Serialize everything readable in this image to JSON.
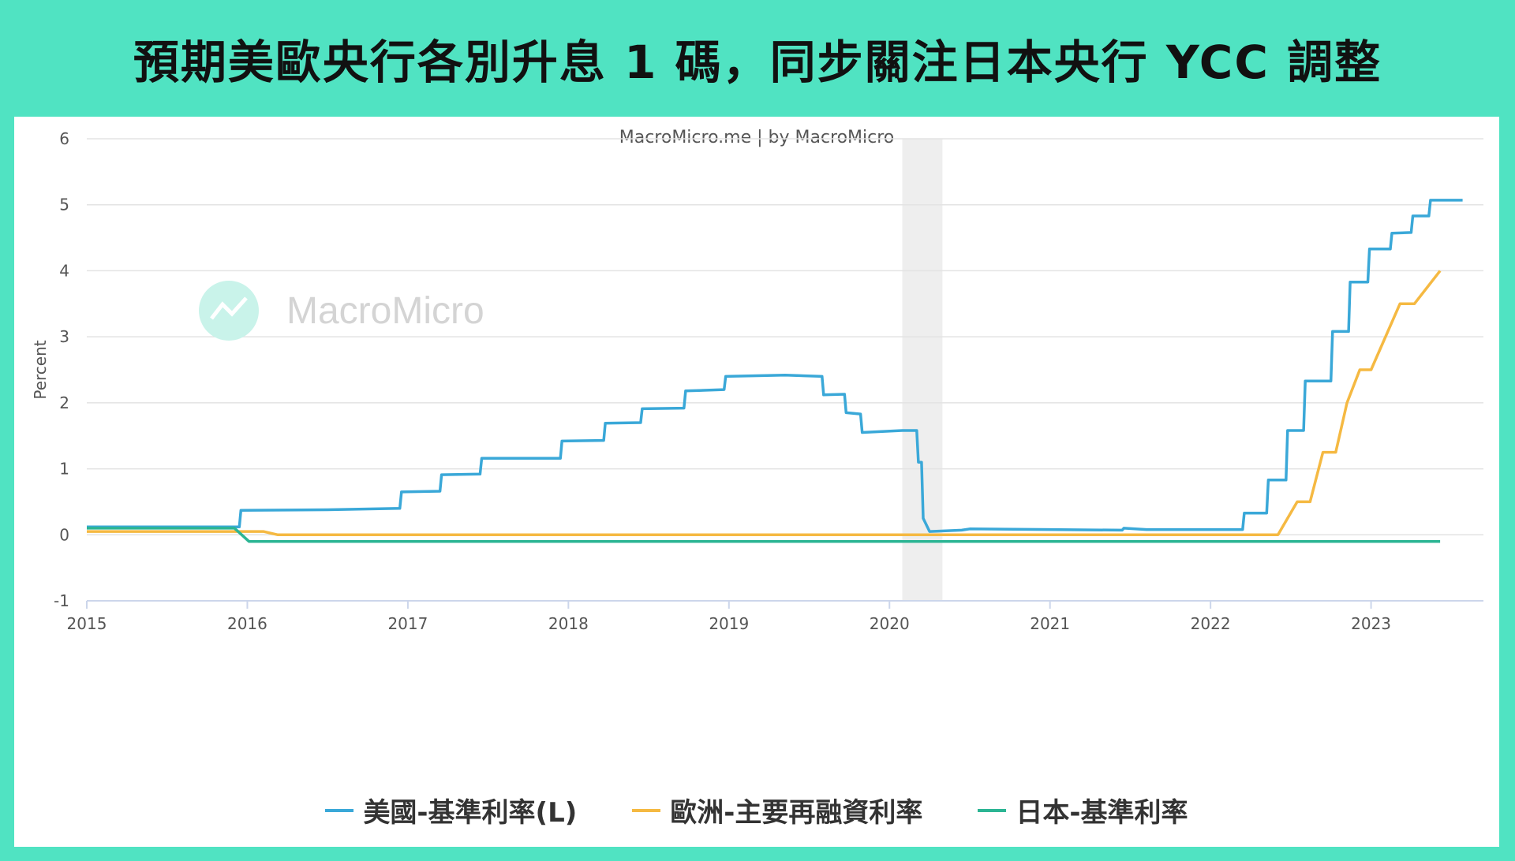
{
  "headline": "預期美歐央行各別升息 1 碼，同步關注日本央行 YCC 調整",
  "source_credit": "MacroMicro.me | by MacroMicro",
  "watermark": "MacroMicro",
  "chart_data": {
    "type": "line",
    "ylabel": "Percent",
    "ylim": [
      -1,
      6
    ],
    "yticks": [
      -1,
      0,
      1,
      2,
      3,
      4,
      5,
      6
    ],
    "xlim": [
      2015,
      2023.7
    ],
    "xticks": [
      2015,
      2016,
      2017,
      2018,
      2019,
      2020,
      2021,
      2022,
      2023
    ],
    "grid": true,
    "legend_position": "bottom",
    "shaded_region": [
      2020.08,
      2020.33
    ],
    "series": [
      {
        "name": "美國-基準利率(L)",
        "color": "#3aa8d8",
        "points": [
          [
            2015.0,
            0.12
          ],
          [
            2015.95,
            0.12
          ],
          [
            2015.96,
            0.37
          ],
          [
            2016.5,
            0.38
          ],
          [
            2016.95,
            0.4
          ],
          [
            2016.96,
            0.65
          ],
          [
            2017.2,
            0.66
          ],
          [
            2017.21,
            0.91
          ],
          [
            2017.45,
            0.92
          ],
          [
            2017.46,
            1.16
          ],
          [
            2017.95,
            1.16
          ],
          [
            2017.96,
            1.42
          ],
          [
            2018.22,
            1.43
          ],
          [
            2018.23,
            1.69
          ],
          [
            2018.45,
            1.7
          ],
          [
            2018.46,
            1.91
          ],
          [
            2018.72,
            1.92
          ],
          [
            2018.73,
            2.18
          ],
          [
            2018.97,
            2.2
          ],
          [
            2018.98,
            2.4
          ],
          [
            2019.35,
            2.42
          ],
          [
            2019.58,
            2.4
          ],
          [
            2019.59,
            2.12
          ],
          [
            2019.72,
            2.13
          ],
          [
            2019.73,
            1.85
          ],
          [
            2019.82,
            1.83
          ],
          [
            2019.83,
            1.55
          ],
          [
            2020.08,
            1.58
          ],
          [
            2020.17,
            1.58
          ],
          [
            2020.18,
            1.1
          ],
          [
            2020.2,
            1.1
          ],
          [
            2020.21,
            0.25
          ],
          [
            2020.25,
            0.05
          ],
          [
            2020.45,
            0.07
          ],
          [
            2020.5,
            0.09
          ],
          [
            2021.0,
            0.08
          ],
          [
            2021.45,
            0.07
          ],
          [
            2021.46,
            0.1
          ],
          [
            2021.6,
            0.08
          ],
          [
            2022.2,
            0.08
          ],
          [
            2022.21,
            0.33
          ],
          [
            2022.35,
            0.33
          ],
          [
            2022.36,
            0.83
          ],
          [
            2022.47,
            0.83
          ],
          [
            2022.48,
            1.58
          ],
          [
            2022.58,
            1.58
          ],
          [
            2022.59,
            2.33
          ],
          [
            2022.75,
            2.33
          ],
          [
            2022.76,
            3.08
          ],
          [
            2022.86,
            3.08
          ],
          [
            2022.87,
            3.83
          ],
          [
            2022.98,
            3.83
          ],
          [
            2022.99,
            4.33
          ],
          [
            2023.12,
            4.33
          ],
          [
            2023.13,
            4.57
          ],
          [
            2023.25,
            4.58
          ],
          [
            2023.26,
            4.83
          ],
          [
            2023.36,
            4.83
          ],
          [
            2023.37,
            5.07
          ],
          [
            2023.57,
            5.07
          ]
        ]
      },
      {
        "name": "歐洲-主要再融資利率",
        "color": "#f5b942",
        "points": [
          [
            2015.0,
            0.05
          ],
          [
            2016.1,
            0.05
          ],
          [
            2016.19,
            0.0
          ],
          [
            2022.42,
            0.0
          ],
          [
            2022.54,
            0.5
          ],
          [
            2022.62,
            0.5
          ],
          [
            2022.7,
            1.25
          ],
          [
            2022.78,
            1.25
          ],
          [
            2022.85,
            2.0
          ],
          [
            2022.93,
            2.5
          ],
          [
            2023.0,
            2.5
          ],
          [
            2023.18,
            3.5
          ],
          [
            2023.27,
            3.5
          ],
          [
            2023.43,
            4.0
          ]
        ]
      },
      {
        "name": "日本-基準利率",
        "color": "#2cb594",
        "points": [
          [
            2015.0,
            0.1
          ],
          [
            2015.92,
            0.1
          ],
          [
            2016.01,
            -0.1
          ],
          [
            2023.43,
            -0.1
          ]
        ]
      }
    ]
  }
}
